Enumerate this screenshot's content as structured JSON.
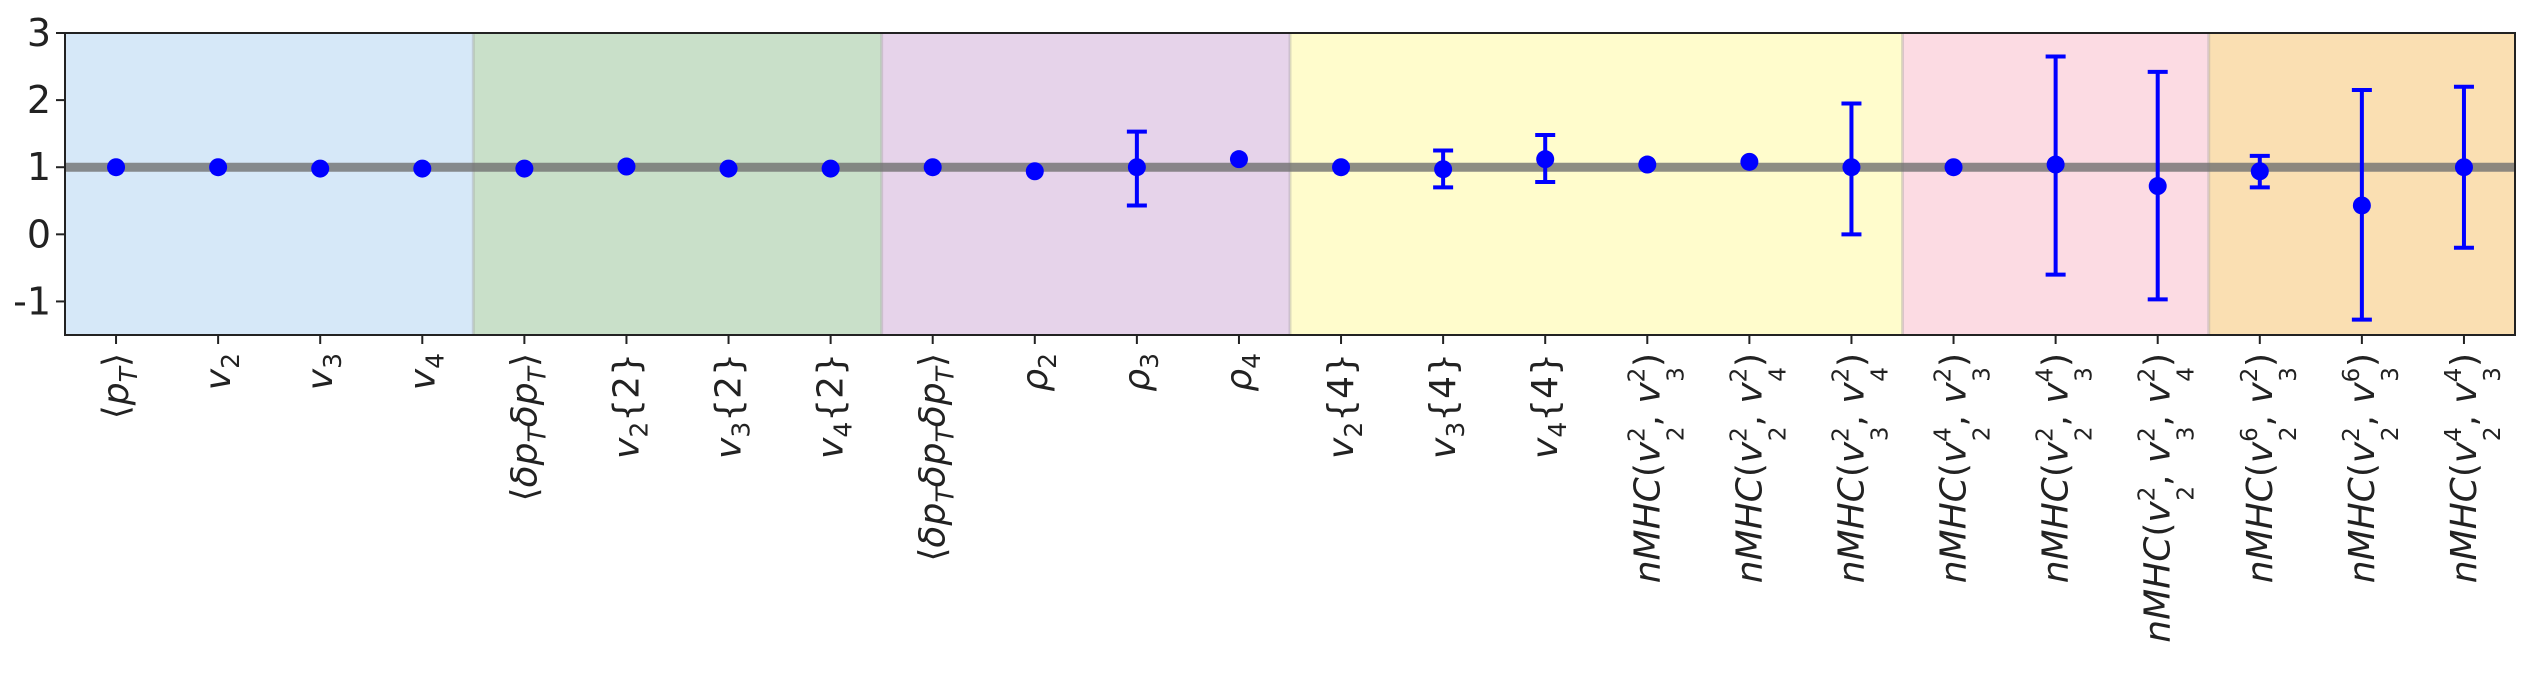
{
  "chart_data": {
    "type": "scatter",
    "title": "",
    "xlabel": "",
    "ylabel": "",
    "ylim": [
      -1.5,
      3
    ],
    "y_ticks": [
      3,
      2,
      1,
      0,
      -1
    ],
    "reference_line": 1,
    "grid": false,
    "legend": "none",
    "marker_color": "#0000ff",
    "reference_line_color": "#707070",
    "categories": [
      {
        "label": "⟨p_T⟩",
        "parts": [
          [
            "⟨",
            ""
          ],
          [
            "p",
            "i"
          ],
          [
            "T",
            "sub-i"
          ],
          [
            "⟩",
            ""
          ]
        ]
      },
      {
        "label": "v_2",
        "parts": [
          [
            "v",
            "i"
          ],
          [
            "2",
            "sub"
          ]
        ]
      },
      {
        "label": "v_3",
        "parts": [
          [
            "v",
            "i"
          ],
          [
            "3",
            "sub"
          ]
        ]
      },
      {
        "label": "v_4",
        "parts": [
          [
            "v",
            "i"
          ],
          [
            "4",
            "sub"
          ]
        ]
      },
      {
        "label": "⟨δp_Tδp_T⟩",
        "parts": [
          [
            "⟨",
            ""
          ],
          [
            "δp",
            "i"
          ],
          [
            "T",
            "sub-i"
          ],
          [
            "δp",
            "i"
          ],
          [
            "T",
            "sub-i"
          ],
          [
            "⟩",
            ""
          ]
        ]
      },
      {
        "label": "v_2{2}",
        "parts": [
          [
            "v",
            "i"
          ],
          [
            "2",
            "sub"
          ],
          [
            "{2}",
            ""
          ]
        ]
      },
      {
        "label": "v_3{2}",
        "parts": [
          [
            "v",
            "i"
          ],
          [
            "3",
            "sub"
          ],
          [
            "{2}",
            ""
          ]
        ]
      },
      {
        "label": "v_4{2}",
        "parts": [
          [
            "v",
            "i"
          ],
          [
            "4",
            "sub"
          ],
          [
            "{2}",
            ""
          ]
        ]
      },
      {
        "label": "⟨δp_Tδp_Tδp_T⟩",
        "parts": [
          [
            "⟨",
            ""
          ],
          [
            "δp",
            "i"
          ],
          [
            "T",
            "sub-i"
          ],
          [
            "δp",
            "i"
          ],
          [
            "T",
            "sub-i"
          ],
          [
            "δp",
            "i"
          ],
          [
            "T",
            "sub-i"
          ],
          [
            "⟩",
            ""
          ]
        ]
      },
      {
        "label": "ρ_2",
        "parts": [
          [
            "ρ",
            "i"
          ],
          [
            "2",
            "sub"
          ]
        ]
      },
      {
        "label": "ρ_3",
        "parts": [
          [
            "ρ",
            "i"
          ],
          [
            "3",
            "sub"
          ]
        ]
      },
      {
        "label": "ρ_4",
        "parts": [
          [
            "ρ",
            "i"
          ],
          [
            "4",
            "sub"
          ]
        ]
      },
      {
        "label": "v_2{4}",
        "parts": [
          [
            "v",
            "i"
          ],
          [
            "2",
            "sub"
          ],
          [
            "{4}",
            ""
          ]
        ]
      },
      {
        "label": "v_3{4}",
        "parts": [
          [
            "v",
            "i"
          ],
          [
            "3",
            "sub"
          ],
          [
            "{4}",
            ""
          ]
        ]
      },
      {
        "label": "v_4{4}",
        "parts": [
          [
            "v",
            "i"
          ],
          [
            "4",
            "sub"
          ],
          [
            "{4}",
            ""
          ]
        ]
      },
      {
        "label": "nMHC(v_2^2, v_3^2)",
        "parts": [
          [
            "nMHC",
            "i"
          ],
          [
            "(",
            ""
          ],
          [
            "v",
            "i"
          ],
          [
            "2",
            "sup"
          ],
          [
            "2",
            "sub-after"
          ],
          [
            ", ",
            ""
          ],
          [
            "v",
            "i"
          ],
          [
            "2",
            "sup"
          ],
          [
            "3",
            "sub-after"
          ],
          [
            ")",
            ""
          ]
        ]
      },
      {
        "label": "nMHC(v_2^2, v_4^2)",
        "parts": [
          [
            "nMHC",
            "i"
          ],
          [
            "(",
            ""
          ],
          [
            "v",
            "i"
          ],
          [
            "2",
            "sup"
          ],
          [
            "2",
            "sub-after"
          ],
          [
            ", ",
            ""
          ],
          [
            "v",
            "i"
          ],
          [
            "2",
            "sup"
          ],
          [
            "4",
            "sub-after"
          ],
          [
            ")",
            ""
          ]
        ]
      },
      {
        "label": "nMHC(v_3^2, v_4^2)",
        "parts": [
          [
            "nMHC",
            "i"
          ],
          [
            "(",
            ""
          ],
          [
            "v",
            "i"
          ],
          [
            "2",
            "sup"
          ],
          [
            "3",
            "sub-after"
          ],
          [
            ", ",
            ""
          ],
          [
            "v",
            "i"
          ],
          [
            "2",
            "sup"
          ],
          [
            "4",
            "sub-after"
          ],
          [
            ")",
            ""
          ]
        ]
      },
      {
        "label": "nMHC(v_2^4, v_3^2)",
        "parts": [
          [
            "nMHC",
            "i"
          ],
          [
            "(",
            ""
          ],
          [
            "v",
            "i"
          ],
          [
            "4",
            "sup"
          ],
          [
            "2",
            "sub-after"
          ],
          [
            ", ",
            ""
          ],
          [
            "v",
            "i"
          ],
          [
            "2",
            "sup"
          ],
          [
            "3",
            "sub-after"
          ],
          [
            ")",
            ""
          ]
        ]
      },
      {
        "label": "nMHC(v_2^2, v_3^4)",
        "parts": [
          [
            "nMHC",
            "i"
          ],
          [
            "(",
            ""
          ],
          [
            "v",
            "i"
          ],
          [
            "2",
            "sup"
          ],
          [
            "2",
            "sub-after"
          ],
          [
            ", ",
            ""
          ],
          [
            "v",
            "i"
          ],
          [
            "4",
            "sup"
          ],
          [
            "3",
            "sub-after"
          ],
          [
            ")",
            ""
          ]
        ]
      },
      {
        "label": "nMHC(v_2^2, v_3^2, v_4^2)",
        "parts": [
          [
            "nMHC",
            "i"
          ],
          [
            "(",
            ""
          ],
          [
            "v",
            "i"
          ],
          [
            "2",
            "sup"
          ],
          [
            "2",
            "sub-after"
          ],
          [
            ", ",
            ""
          ],
          [
            "v",
            "i"
          ],
          [
            "2",
            "sup"
          ],
          [
            "3",
            "sub-after"
          ],
          [
            ", ",
            ""
          ],
          [
            "v",
            "i"
          ],
          [
            "2",
            "sup"
          ],
          [
            "4",
            "sub-after"
          ],
          [
            ")",
            ""
          ]
        ]
      },
      {
        "label": "nMHC(v_2^6, v_3^2)",
        "parts": [
          [
            "nMHC",
            "i"
          ],
          [
            "(",
            ""
          ],
          [
            "v",
            "i"
          ],
          [
            "6",
            "sup"
          ],
          [
            "2",
            "sub-after"
          ],
          [
            ", ",
            ""
          ],
          [
            "v",
            "i"
          ],
          [
            "2",
            "sup"
          ],
          [
            "3",
            "sub-after"
          ],
          [
            ")",
            ""
          ]
        ]
      },
      {
        "label": "nMHC(v_2^2, v_3^6)",
        "parts": [
          [
            "nMHC",
            "i"
          ],
          [
            "(",
            ""
          ],
          [
            "v",
            "i"
          ],
          [
            "2",
            "sup"
          ],
          [
            "2",
            "sub-after"
          ],
          [
            ", ",
            ""
          ],
          [
            "v",
            "i"
          ],
          [
            "6",
            "sup"
          ],
          [
            "3",
            "sub-after"
          ],
          [
            ")",
            ""
          ]
        ]
      },
      {
        "label": "nMHC(v_2^4, v_3^4)",
        "parts": [
          [
            "nMHC",
            "i"
          ],
          [
            "(",
            ""
          ],
          [
            "v",
            "i"
          ],
          [
            "4",
            "sup"
          ],
          [
            "2",
            "sub-after"
          ],
          [
            ", ",
            ""
          ],
          [
            "v",
            "i"
          ],
          [
            "4",
            "sup"
          ],
          [
            "3",
            "sub-after"
          ],
          [
            ")",
            ""
          ]
        ]
      }
    ],
    "values": [
      1.0,
      1.0,
      0.98,
      0.98,
      0.98,
      1.01,
      0.98,
      0.98,
      1.0,
      0.94,
      1.0,
      1.12,
      1.0,
      0.97,
      1.12,
      1.04,
      1.08,
      1.0,
      1.0,
      1.04,
      0.72,
      0.94,
      0.43,
      1.0
    ],
    "error_low": [
      1.0,
      1.0,
      0.98,
      0.98,
      0.98,
      1.01,
      0.98,
      0.98,
      1.0,
      0.94,
      0.43,
      1.12,
      1.0,
      0.7,
      0.78,
      1.04,
      1.08,
      0.0,
      1.0,
      -0.6,
      -0.97,
      0.7,
      -1.27,
      -0.2
    ],
    "error_high": [
      1.0,
      1.0,
      0.98,
      0.98,
      0.98,
      1.01,
      0.98,
      0.98,
      1.0,
      0.94,
      1.53,
      1.12,
      1.0,
      1.25,
      1.48,
      1.04,
      1.08,
      1.95,
      1.0,
      2.65,
      2.42,
      1.17,
      2.15,
      2.2
    ],
    "groups": [
      {
        "start": 0,
        "end": 3,
        "color": "#d6e8f8"
      },
      {
        "start": 4,
        "end": 7,
        "color": "#c9e0c9"
      },
      {
        "start": 8,
        "end": 11,
        "color": "#e6d3ea"
      },
      {
        "start": 12,
        "end": 17,
        "color": "#fffccc"
      },
      {
        "start": 18,
        "end": 20,
        "color": "#fcdbe3"
      },
      {
        "start": 21,
        "end": 23,
        "color": "#fadfb2"
      }
    ]
  }
}
